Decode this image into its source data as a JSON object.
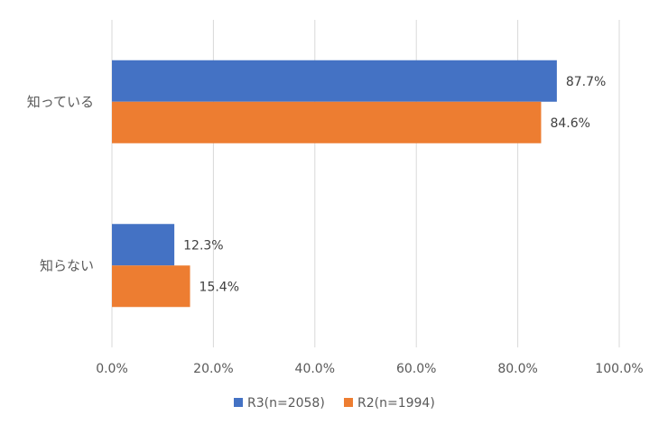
{
  "chart_data": {
    "type": "bar",
    "orientation": "horizontal",
    "categories": [
      "知っている",
      "知らない"
    ],
    "series": [
      {
        "name": "R3(n=2058)",
        "values": [
          87.7,
          12.3
        ],
        "labels": [
          "87.7%",
          "12.3%"
        ],
        "color": "#4472C4"
      },
      {
        "name": "R2(n=1994)",
        "values": [
          84.6,
          15.4
        ],
        "labels": [
          "84.6%",
          "15.4%"
        ],
        "color": "#ED7D31"
      }
    ],
    "xlim": [
      0,
      100
    ],
    "xticks": [
      0,
      20,
      40,
      60,
      80,
      100
    ],
    "xtick_labels": [
      "0.0%",
      "20.0%",
      "40.0%",
      "60.0%",
      "80.0%",
      "100.0%"
    ],
    "grid": "vertical",
    "gridline_color": "#D9D9D9",
    "legend": "bottom-center",
    "title": "",
    "xlabel": "",
    "ylabel": ""
  }
}
